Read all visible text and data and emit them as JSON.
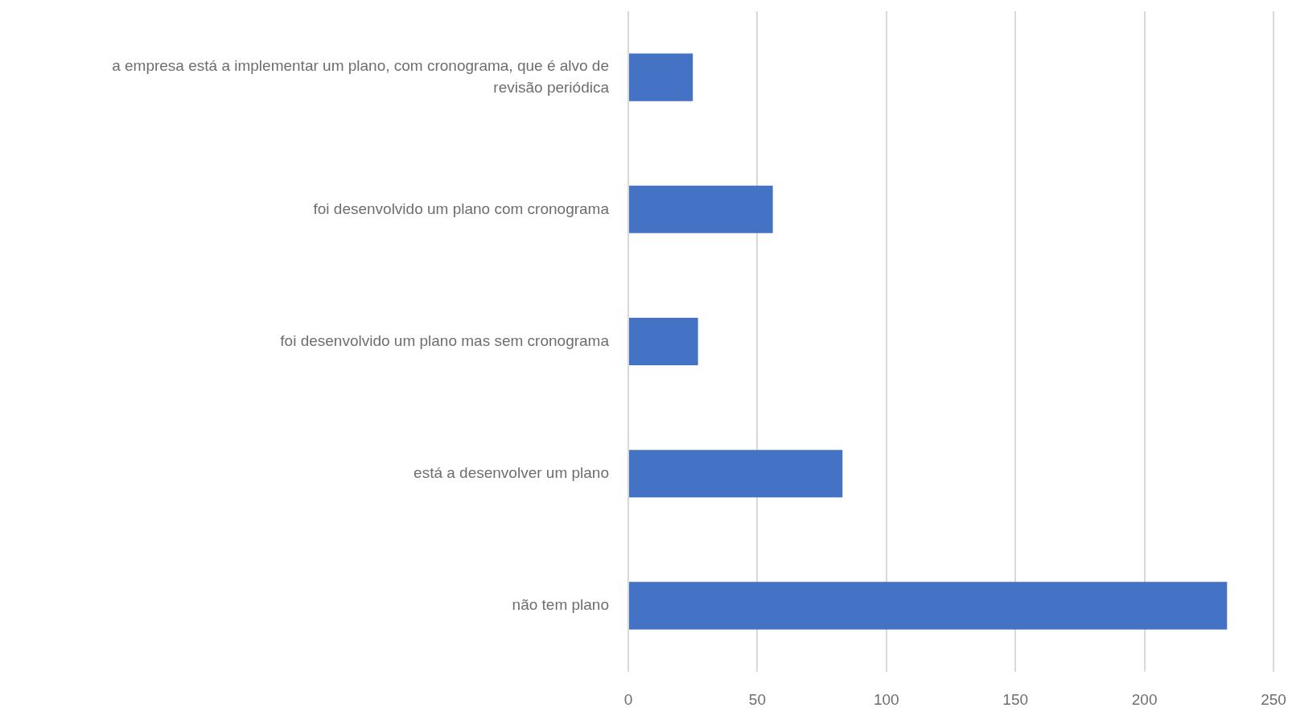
{
  "chart_data": {
    "type": "bar",
    "orientation": "horizontal",
    "categories": [
      "a empresa está a implementar um plano, com cronograma, que é alvo de revisão periódica",
      "foi desenvolvido um plano com cronograma",
      "foi desenvolvido um plano mas sem cronograma",
      "está a desenvolver um plano",
      "não tem plano"
    ],
    "values": [
      25,
      56,
      27,
      83,
      232
    ],
    "color": "#4472c4",
    "xlim": [
      0,
      250
    ],
    "xticks": [
      0,
      50,
      100,
      150,
      200,
      250
    ],
    "grid": "x"
  }
}
